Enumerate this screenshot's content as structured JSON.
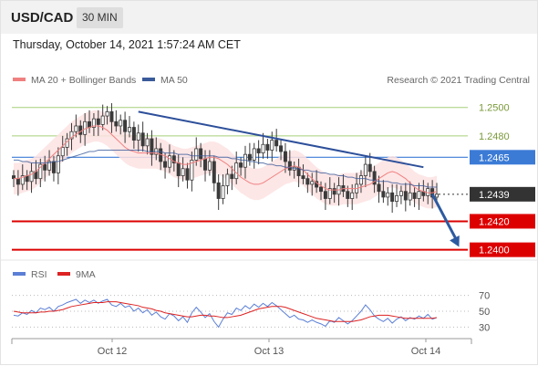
{
  "header": {
    "symbol": "USD/CAD",
    "timeframe": "30 MIN"
  },
  "datetime": "Thursday, October 14, 2021 1:57:24 AM CET",
  "legend": {
    "ma20": "MA 20 + Bollinger Bands",
    "ma50": "MA 50",
    "rsi": "RSI",
    "rsi_ma": "9MA",
    "credit": "Research © 2021 Trading Central"
  },
  "colors": {
    "ma20": "#f08080",
    "ma50": "#3a5a9a",
    "bands": "#fde2e2",
    "candle": "#3a3a3a",
    "resistance": "#3b7bd6",
    "support": "#dd0000",
    "minor_level": "#a6cf7a",
    "trendline": "#2d4f9a",
    "arrow": "#2d5aa0",
    "rsi": "#5b7fd6",
    "rsi_ma": "#dd2222"
  },
  "chart_data": [
    {
      "type": "candlestick",
      "title": "USD/CAD 30 MIN",
      "x_ticks": [
        "Oct 12",
        "Oct 13",
        "Oct 14"
      ],
      "ylim": [
        1.2394,
        1.2512
      ],
      "price_levels": [
        {
          "label": "1.2500",
          "value": 1.25,
          "kind": "minor"
        },
        {
          "label": "1.2480",
          "value": 1.248,
          "kind": "minor"
        },
        {
          "label": "1.2465",
          "value": 1.2465,
          "kind": "resistance"
        },
        {
          "label": "1.2439",
          "value": 1.2439,
          "kind": "last"
        },
        {
          "label": "1.2420",
          "value": 1.242,
          "kind": "support"
        },
        {
          "label": "1.2400",
          "value": 1.24,
          "kind": "support"
        }
      ],
      "last_price": 1.2439,
      "trendline": {
        "start": [
          28,
          1.2497
        ],
        "end": [
          92,
          1.2458
        ]
      },
      "forecast_arrow": {
        "from": [
          94,
          1.2439
        ],
        "to": [
          100,
          1.2402
        ]
      },
      "series": [
        {
          "name": "MA 20 + Bollinger Bands",
          "kind": "ma",
          "values": [
            1.245,
            1.245,
            1.2451,
            1.2452,
            1.2453,
            1.2455,
            1.2458,
            1.2461,
            1.2464,
            1.2467,
            1.247,
            1.2473,
            1.2476,
            1.2479,
            1.2481,
            1.2483,
            1.2485,
            1.2486,
            1.2487,
            1.2487,
            1.2486,
            1.2484,
            1.2481,
            1.2478,
            1.2475,
            1.2472,
            1.247,
            1.2469,
            1.2468,
            1.2468,
            1.2468,
            1.2468,
            1.2468,
            1.2467,
            1.2466,
            1.2464,
            1.2462,
            1.2461,
            1.246,
            1.246,
            1.2461,
            1.2462,
            1.2463,
            1.2464,
            1.2465,
            1.2465,
            1.2464,
            1.2462,
            1.246,
            1.2457,
            1.2454,
            1.2451,
            1.2449,
            1.2447,
            1.2446,
            1.2446,
            1.2447,
            1.2449,
            1.2451,
            1.2453,
            1.2455,
            1.2457,
            1.2458,
            1.2459,
            1.2458,
            1.2456,
            1.2453,
            1.245,
            1.2447,
            1.2445,
            1.2443,
            1.2442,
            1.2442,
            1.2442,
            1.2443,
            1.2443,
            1.2443,
            1.2443,
            1.2444,
            1.2445,
            1.2446,
            1.2448,
            1.245,
            1.2452,
            1.2454,
            1.2455,
            1.2454,
            1.2452,
            1.245,
            1.2447,
            1.2444,
            1.2442,
            1.2441,
            1.244,
            1.244,
            1.2441
          ]
        },
        {
          "name": "MA 50",
          "values": [
            1.2463,
            1.2463,
            1.2462,
            1.2462,
            1.2461,
            1.2461,
            1.2461,
            1.2461,
            1.2461,
            1.2462,
            1.2462,
            1.2463,
            1.2464,
            1.2465,
            1.2466,
            1.2467,
            1.2468,
            1.2469,
            1.2469,
            1.247,
            1.247,
            1.247,
            1.247,
            1.247,
            1.247,
            1.247,
            1.247,
            1.247,
            1.247,
            1.247,
            1.2469,
            1.2469,
            1.2469,
            1.2469,
            1.2468,
            1.2468,
            1.2468,
            1.2467,
            1.2467,
            1.2467,
            1.2466,
            1.2466,
            1.2466,
            1.2466,
            1.2466,
            1.2466,
            1.2465,
            1.2465,
            1.2465,
            1.2464,
            1.2464,
            1.2463,
            1.2463,
            1.2462,
            1.2462,
            1.2461,
            1.2461,
            1.246,
            1.246,
            1.2459,
            1.2459,
            1.2458,
            1.2458,
            1.2457,
            1.2457,
            1.2456,
            1.2456,
            1.2455,
            1.2455,
            1.2454,
            1.2454,
            1.2453,
            1.2453,
            1.2452,
            1.2452,
            1.2451,
            1.2451,
            1.245,
            1.245,
            1.245,
            1.2449,
            1.2449,
            1.2448,
            1.2448,
            1.2448,
            1.2447,
            1.2447,
            1.2446,
            1.2446,
            1.2446,
            1.2445,
            1.2445,
            1.2445,
            1.2444,
            1.2444,
            1.2444
          ]
        },
        {
          "name": "Close",
          "values": [
            1.245,
            1.2446,
            1.2452,
            1.2448,
            1.2455,
            1.245,
            1.246,
            1.2456,
            1.2462,
            1.2454,
            1.2466,
            1.2472,
            1.2478,
            1.2483,
            1.2487,
            1.2481,
            1.249,
            1.2486,
            1.2492,
            1.2488,
            1.2494,
            1.2497,
            1.249,
            1.2487,
            1.2491,
            1.2483,
            1.2486,
            1.2477,
            1.2482,
            1.2473,
            1.2478,
            1.2467,
            1.2471,
            1.2462,
            1.2458,
            1.2466,
            1.2461,
            1.2452,
            1.2457,
            1.2449,
            1.2463,
            1.2471,
            1.2464,
            1.2456,
            1.2462,
            1.2447,
            1.2436,
            1.2445,
            1.2453,
            1.245,
            1.2461,
            1.2458,
            1.2467,
            1.2463,
            1.2471,
            1.2468,
            1.2474,
            1.247,
            1.2477,
            1.2473,
            1.2469,
            1.2462,
            1.2456,
            1.2458,
            1.2452,
            1.245,
            1.2446,
            1.2448,
            1.2444,
            1.2441,
            1.2436,
            1.2443,
            1.2439,
            1.2445,
            1.2441,
            1.2436,
            1.244,
            1.2446,
            1.2452,
            1.246,
            1.2455,
            1.2446,
            1.2441,
            1.2437,
            1.244,
            1.2434,
            1.2438,
            1.2441,
            1.2435,
            1.244,
            1.2436,
            1.2441,
            1.2438,
            1.2443,
            1.2437,
            1.2439
          ]
        }
      ]
    },
    {
      "type": "line",
      "title": "RSI",
      "x_ticks": [
        "Oct 12",
        "Oct 13",
        "Oct 14"
      ],
      "y_ticks": [
        "70",
        "50",
        "30"
      ],
      "ylim": [
        20,
        80
      ],
      "series": [
        {
          "name": "RSI",
          "values": [
            45,
            44,
            48,
            46,
            51,
            48,
            54,
            52,
            55,
            50,
            56,
            58,
            61,
            63,
            65,
            60,
            64,
            61,
            64,
            60,
            63,
            65,
            58,
            56,
            60,
            55,
            57,
            50,
            54,
            48,
            52,
            45,
            49,
            43,
            40,
            47,
            44,
            38,
            43,
            36,
            48,
            55,
            49,
            42,
            47,
            37,
            30,
            40,
            48,
            46,
            54,
            51,
            57,
            53,
            59,
            55,
            60,
            56,
            61,
            57,
            52,
            47,
            42,
            45,
            40,
            39,
            36,
            39,
            36,
            34,
            31,
            38,
            36,
            42,
            38,
            34,
            38,
            44,
            50,
            58,
            52,
            44,
            40,
            37,
            41,
            35,
            40,
            43,
            38,
            42,
            40,
            44,
            41,
            46,
            40,
            42
          ]
        },
        {
          "name": "9MA",
          "values": [
            50,
            49,
            48,
            48,
            48,
            48,
            49,
            49,
            50,
            50,
            51,
            52,
            54,
            56,
            57,
            58,
            59,
            60,
            61,
            61,
            61,
            62,
            62,
            62,
            61,
            60,
            59,
            58,
            57,
            55,
            54,
            53,
            51,
            50,
            48,
            47,
            46,
            45,
            44,
            43,
            43,
            44,
            45,
            45,
            44,
            44,
            43,
            42,
            42,
            43,
            44,
            45,
            47,
            49,
            51,
            53,
            54,
            55,
            56,
            56,
            56,
            55,
            53,
            51,
            49,
            47,
            45,
            43,
            41,
            40,
            39,
            38,
            37,
            37,
            37,
            37,
            37,
            38,
            39,
            41,
            43,
            44,
            45,
            45,
            45,
            44,
            43,
            42,
            41,
            41,
            41,
            41,
            41,
            41,
            41,
            42
          ]
        }
      ]
    }
  ]
}
